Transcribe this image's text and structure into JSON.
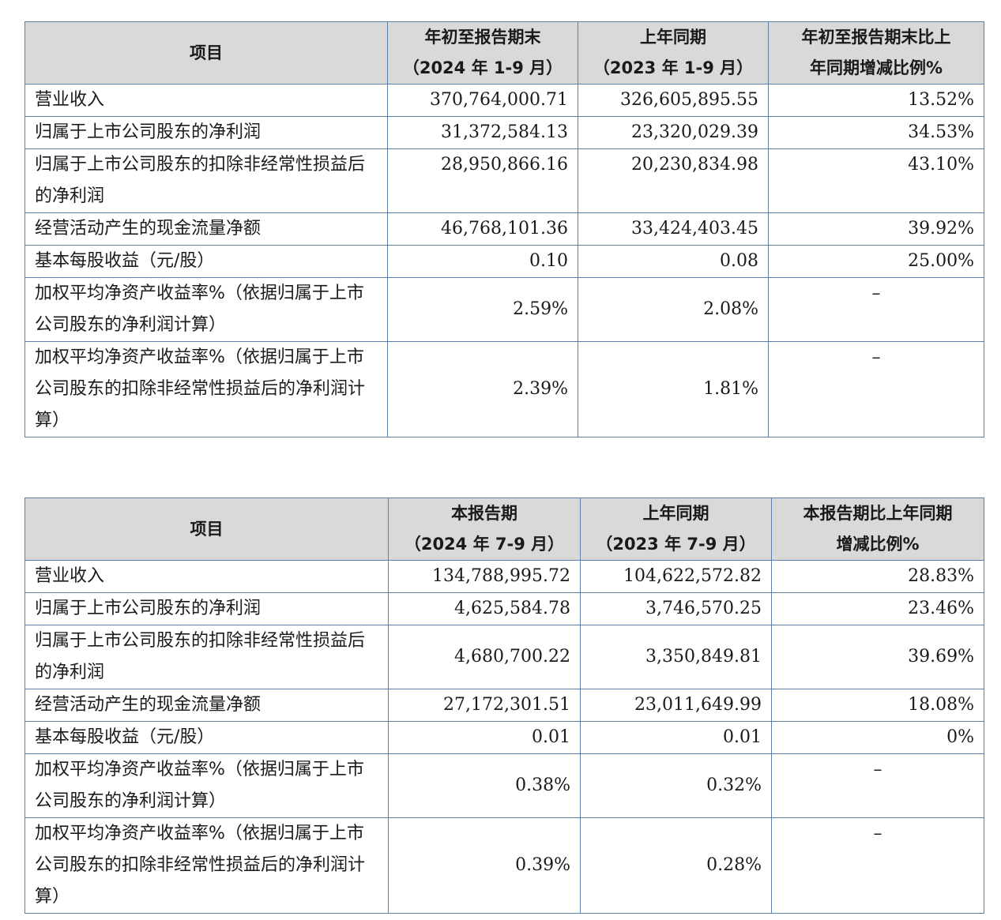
{
  "tables": [
    {
      "headers": [
        [
          "项目"
        ],
        [
          "年初至报告期末",
          "（2024 年 1-9 月）"
        ],
        [
          "上年同期",
          "（2023 年 1-9 月）"
        ],
        [
          "年初至报告期末比上",
          "年同期增减比例%"
        ]
      ],
      "rows": [
        {
          "label": "营业收入",
          "current": "370,764,000.71",
          "prior": "326,605,895.55",
          "change": "13.52%",
          "h": 1
        },
        {
          "label": "归属于上市公司股东的净利润",
          "current": "31,372,584.13",
          "prior": "23,320,029.39",
          "change": "34.53%",
          "h": 1
        },
        {
          "label": "归属于上市公司股东的扣除非经常性损益后的净利润",
          "current": "28,950,866.16",
          "prior": "20,230,834.98",
          "change": "43.10%",
          "h": 2,
          "top": true
        },
        {
          "label": "经营活动产生的现金流量净额",
          "current": "46,768,101.36",
          "prior": "33,424,403.45",
          "change": "39.92%",
          "h": 1
        },
        {
          "label": "基本每股收益（元/股）",
          "current": "0.10",
          "prior": "0.08",
          "change": "25.00%",
          "h": 1
        },
        {
          "label": "加权平均净资产收益率%（依据归属于上市公司股东的净利润计算）",
          "current": "2.59%",
          "prior": "2.08%",
          "change": "–",
          "h": 2,
          "dash": true
        },
        {
          "label": "加权平均净资产收益率%（依据归属于上市公司股东的扣除非经常性损益后的净利润计算）",
          "current": "2.39%",
          "prior": "1.81%",
          "change": "–",
          "h": 3,
          "dash": true
        }
      ]
    },
    {
      "headers": [
        [
          "项目"
        ],
        [
          "本报告期",
          "（2024 年 7-9 月）"
        ],
        [
          "上年同期",
          "（2023 年 7-9 月）"
        ],
        [
          "本报告期比上年同期",
          "增减比例%"
        ]
      ],
      "rows": [
        {
          "label": "营业收入",
          "current": "134,788,995.72",
          "prior": "104,622,572.82",
          "change": "28.83%",
          "h": 1
        },
        {
          "label": "归属于上市公司股东的净利润",
          "current": "4,625,584.78",
          "prior": "3,746,570.25",
          "change": "23.46%",
          "h": 1
        },
        {
          "label": "归属于上市公司股东的扣除非经常性损益后的净利润",
          "current": "4,680,700.22",
          "prior": "3,350,849.81",
          "change": "39.69%",
          "h": 2
        },
        {
          "label": "经营活动产生的现金流量净额",
          "current": "27,172,301.51",
          "prior": "23,011,649.99",
          "change": "18.08%",
          "h": 1
        },
        {
          "label": "基本每股收益（元/股）",
          "current": "0.01",
          "prior": "0.01",
          "change": "0%",
          "h": 1
        },
        {
          "label": "加权平均净资产收益率%（依据归属于上市公司股东的净利润计算）",
          "current": "0.38%",
          "prior": "0.32%",
          "change": "–",
          "h": 2,
          "dash": true
        },
        {
          "label": "加权平均净资产收益率%（依据归属于上市公司股东的扣除非经常性损益后的净利润计算）",
          "current": "0.39%",
          "prior": "0.28%",
          "change": "–",
          "h": 3,
          "dash": true
        }
      ]
    }
  ]
}
